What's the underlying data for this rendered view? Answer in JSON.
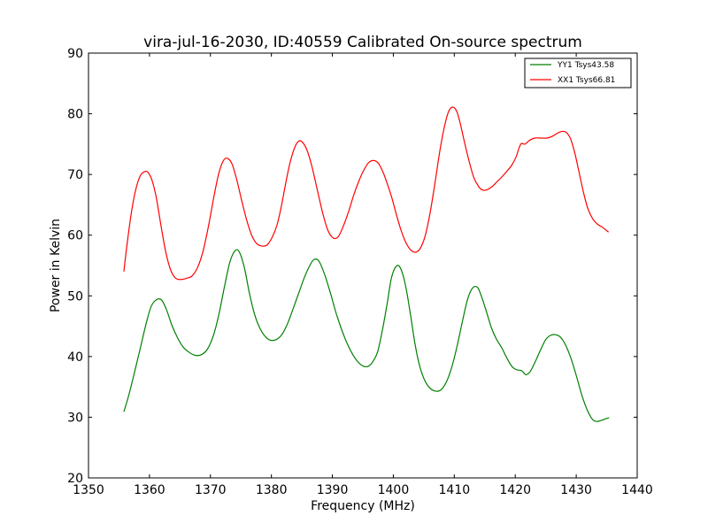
{
  "chart_data": {
    "type": "line",
    "title": "vira-jul-16-2030, ID:40559 Calibrated On-source spectrum",
    "xlabel": "Frequency (MHz)",
    "ylabel": "Power in Kelvin",
    "xlim": [
      1350,
      1440
    ],
    "ylim": [
      20,
      90
    ],
    "xticks": [
      1350,
      1360,
      1370,
      1380,
      1390,
      1400,
      1410,
      1420,
      1430,
      1440
    ],
    "yticks": [
      20,
      30,
      40,
      50,
      60,
      70,
      80,
      90
    ],
    "grid": false,
    "legend_position": "top-right",
    "series": [
      {
        "name": "YY1 Tsys43.58",
        "color": "#008000",
        "x": [
          1355.8,
          1356.6,
          1357.5,
          1358.5,
          1359.5,
          1360.3,
          1361.2,
          1362.0,
          1362.8,
          1363.7,
          1364.6,
          1365.5,
          1366.5,
          1367.5,
          1368.5,
          1369.5,
          1370.5,
          1371.4,
          1372.3,
          1373.2,
          1374.1,
          1374.8,
          1375.6,
          1376.4,
          1377.2,
          1378.0,
          1378.9,
          1379.8,
          1380.8,
          1381.7,
          1382.6,
          1383.5,
          1384.5,
          1385.4,
          1386.3,
          1387.0,
          1387.8,
          1388.7,
          1389.7,
          1390.6,
          1391.5,
          1392.4,
          1393.3,
          1394.2,
          1395.1,
          1395.9,
          1396.6,
          1397.4,
          1398.2,
          1399.0,
          1399.7,
          1400.5,
          1401.2,
          1402.0,
          1402.8,
          1403.5,
          1404.2,
          1405.0,
          1405.9,
          1406.9,
          1407.8,
          1408.7,
          1409.6,
          1410.5,
          1411.4,
          1412.2,
          1413.0,
          1413.8,
          1414.5,
          1415.3,
          1416.1,
          1416.9,
          1417.8,
          1418.6,
          1419.5,
          1420.3,
          1421.0,
          1421.4,
          1421.8,
          1422.5,
          1423.3,
          1424.2,
          1425.0,
          1425.8,
          1426.6,
          1427.4,
          1428.2,
          1429.1,
          1430.0,
          1430.9,
          1431.8,
          1432.7,
          1433.4,
          1434.2,
          1435.0,
          1435.4
        ],
        "y": [
          30.9,
          33.6,
          37.2,
          41.4,
          45.6,
          48.3,
          49.4,
          49.3,
          47.7,
          45.1,
          43.1,
          41.6,
          40.7,
          40.2,
          40.3,
          41.2,
          43.5,
          47.0,
          51.5,
          55.6,
          57.5,
          57.1,
          54.5,
          50.4,
          47.1,
          44.9,
          43.4,
          42.7,
          42.8,
          43.6,
          45.3,
          47.7,
          50.5,
          53.0,
          55.0,
          56.0,
          55.7,
          53.6,
          50.4,
          47.2,
          44.5,
          42.2,
          40.4,
          39.1,
          38.4,
          38.4,
          39.1,
          40.7,
          44.3,
          48.8,
          53.0,
          54.9,
          54.5,
          51.7,
          47.0,
          42.4,
          38.9,
          36.4,
          34.9,
          34.3,
          34.5,
          35.8,
          38.3,
          41.9,
          46.1,
          49.5,
          51.3,
          51.4,
          49.8,
          47.3,
          44.7,
          42.9,
          41.4,
          39.8,
          38.3,
          37.8,
          37.7,
          37.3,
          37.0,
          37.6,
          39.2,
          41.2,
          42.8,
          43.5,
          43.6,
          43.2,
          42.0,
          39.8,
          36.9,
          33.7,
          31.2,
          29.6,
          29.3,
          29.5,
          29.8,
          29.9
        ]
      },
      {
        "name": "XX1 Tsys66.81",
        "color": "#ff0000",
        "x": [
          1355.8,
          1356.3,
          1357.0,
          1357.7,
          1358.5,
          1359.3,
          1359.8,
          1360.4,
          1361.1,
          1361.9,
          1362.7,
          1363.5,
          1364.3,
          1365.2,
          1366.1,
          1367.0,
          1367.9,
          1368.8,
          1369.7,
          1370.6,
          1371.4,
          1372.2,
          1372.9,
          1373.6,
          1374.4,
          1375.2,
          1376.0,
          1376.8,
          1377.6,
          1378.5,
          1379.3,
          1380.1,
          1380.9,
          1381.6,
          1382.3,
          1383.0,
          1383.8,
          1384.5,
          1385.1,
          1385.8,
          1386.6,
          1387.5,
          1388.4,
          1389.3,
          1390.2,
          1391.0,
          1391.8,
          1392.7,
          1393.5,
          1394.3,
          1395.1,
          1395.9,
          1396.7,
          1397.5,
          1398.3,
          1399.1,
          1399.8,
          1400.5,
          1401.3,
          1402.1,
          1402.9,
          1403.7,
          1404.4,
          1405.2,
          1406.0,
          1406.8,
          1407.6,
          1408.3,
          1409.0,
          1409.7,
          1410.4,
          1411.0,
          1411.7,
          1412.5,
          1413.2,
          1414.0,
          1414.7,
          1415.4,
          1416.2,
          1417.0,
          1417.8,
          1418.6,
          1419.4,
          1420.1,
          1420.6,
          1421.0,
          1421.6,
          1422.3,
          1423.2,
          1424.2,
          1425.2,
          1426.1,
          1426.9,
          1427.7,
          1428.4,
          1429.1,
          1429.8,
          1430.5,
          1431.2,
          1431.9,
          1432.7,
          1433.5,
          1434.3,
          1435.3
        ],
        "y": [
          54.0,
          58.3,
          63.5,
          67.3,
          69.8,
          70.5,
          70.3,
          69.1,
          66.3,
          61.5,
          57.1,
          54.2,
          52.9,
          52.7,
          52.9,
          53.3,
          54.7,
          57.4,
          61.6,
          66.5,
          70.3,
          72.4,
          72.6,
          71.6,
          68.8,
          65.4,
          62.3,
          59.9,
          58.6,
          58.2,
          58.4,
          59.6,
          61.6,
          64.6,
          68.3,
          71.7,
          74.4,
          75.5,
          75.3,
          74.1,
          71.5,
          67.6,
          63.7,
          60.7,
          59.5,
          59.8,
          61.5,
          64.0,
          66.6,
          68.8,
          70.6,
          71.9,
          72.3,
          71.9,
          70.4,
          68.2,
          66.0,
          63.4,
          60.7,
          58.7,
          57.5,
          57.2,
          57.8,
          59.8,
          63.5,
          68.4,
          73.7,
          77.5,
          80.2,
          81.1,
          80.4,
          78.3,
          75.2,
          71.9,
          69.5,
          68.0,
          67.4,
          67.5,
          68.0,
          68.8,
          69.6,
          70.5,
          71.5,
          72.8,
          74.3,
          75.1,
          75.0,
          75.6,
          76.0,
          76.0,
          76.0,
          76.3,
          76.8,
          77.1,
          76.9,
          75.8,
          73.4,
          70.2,
          67.0,
          64.4,
          62.7,
          61.8,
          61.3,
          60.5
        ]
      }
    ]
  }
}
